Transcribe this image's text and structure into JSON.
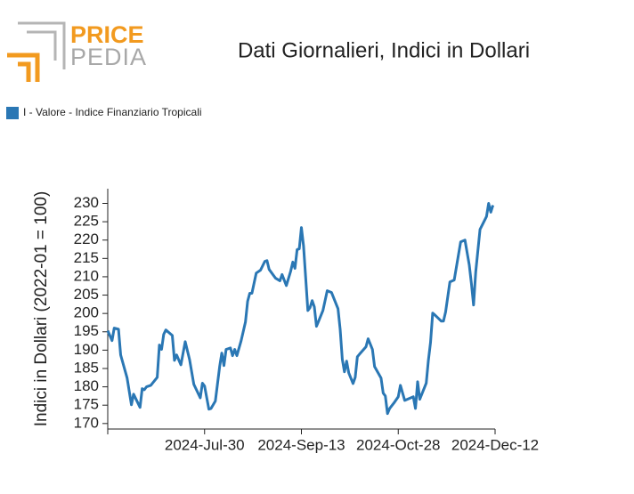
{
  "logo": {
    "line1": "PRICE",
    "line2": "PEDIA"
  },
  "chart_data": {
    "type": "line",
    "title": "Dati Giornalieri, Indici in Dollari",
    "y_label": "Indici in Dollari (2022-01 = 100)",
    "xlim": [
      "2024-06-15",
      "2024-12-12"
    ],
    "xticks": [
      {
        "value": "2024-07-30",
        "label": "2024-Jul-30"
      },
      {
        "value": "2024-09-13",
        "label": "2024-Sep-13"
      },
      {
        "value": "2024-10-28",
        "label": "2024-Oct-28"
      },
      {
        "value": "2024-12-12",
        "label": "2024-Dec-12"
      }
    ],
    "ylim": [
      168.5,
      234
    ],
    "yticks": [
      170,
      175,
      180,
      185,
      190,
      195,
      200,
      205,
      210,
      215,
      220,
      225,
      230
    ],
    "legend": "top-left",
    "series": [
      {
        "name": "I - Valore - Indice Finanziario Tropicali",
        "color": "#2a77b4",
        "x": [
          "2024-06-15",
          "2024-06-17",
          "2024-06-18",
          "2024-06-20",
          "2024-06-21",
          "2024-06-24",
          "2024-06-26",
          "2024-06-27",
          "2024-06-30",
          "2024-07-01",
          "2024-07-02",
          "2024-07-03",
          "2024-07-05",
          "2024-07-08",
          "2024-07-09",
          "2024-07-10",
          "2024-07-11",
          "2024-07-12",
          "2024-07-15",
          "2024-07-16",
          "2024-07-17",
          "2024-07-19",
          "2024-07-21",
          "2024-07-23",
          "2024-07-25",
          "2024-07-28",
          "2024-07-29",
          "2024-07-30",
          "2024-08-01",
          "2024-08-02",
          "2024-08-04",
          "2024-08-06",
          "2024-08-07",
          "2024-08-08",
          "2024-08-09",
          "2024-08-11",
          "2024-08-12",
          "2024-08-13",
          "2024-08-14",
          "2024-08-16",
          "2024-08-18",
          "2024-08-19",
          "2024-08-20",
          "2024-08-21",
          "2024-08-23",
          "2024-08-25",
          "2024-08-27",
          "2024-08-28",
          "2024-08-29",
          "2024-09-01",
          "2024-09-03",
          "2024-09-04",
          "2024-09-06",
          "2024-09-08",
          "2024-09-09",
          "2024-09-10",
          "2024-09-11",
          "2024-09-12",
          "2024-09-13",
          "2024-09-14",
          "2024-09-16",
          "2024-09-17",
          "2024-09-18",
          "2024-09-19",
          "2024-09-20",
          "2024-09-21",
          "2024-09-23",
          "2024-09-25",
          "2024-09-27",
          "2024-09-30",
          "2024-10-01",
          "2024-10-02",
          "2024-10-03",
          "2024-10-04",
          "2024-10-05",
          "2024-10-07",
          "2024-10-08",
          "2024-10-09",
          "2024-10-10",
          "2024-10-13",
          "2024-10-14",
          "2024-10-16",
          "2024-10-17",
          "2024-10-20",
          "2024-10-21",
          "2024-10-22",
          "2024-10-23",
          "2024-10-24",
          "2024-10-26",
          "2024-10-28",
          "2024-10-29",
          "2024-10-31",
          "2024-11-04",
          "2024-11-05",
          "2024-11-06",
          "2024-11-07",
          "2024-11-10",
          "2024-11-11",
          "2024-11-12",
          "2024-11-13",
          "2024-11-14",
          "2024-11-17",
          "2024-11-18",
          "2024-11-19",
          "2024-11-21",
          "2024-11-23",
          "2024-11-26",
          "2024-11-28",
          "2024-11-30",
          "2024-12-01",
          "2024-12-02",
          "2024-12-03",
          "2024-12-05",
          "2024-12-08",
          "2024-12-09",
          "2024-12-10",
          "2024-12-11"
        ],
        "values": [
          195.3,
          192.6,
          196,
          195.7,
          188.7,
          182.4,
          175.1,
          178,
          174.4,
          179.5,
          179.2,
          180,
          180.4,
          182.6,
          191.4,
          190.2,
          194.3,
          195.5,
          194,
          187.2,
          188.7,
          186,
          192.3,
          187.5,
          180.7,
          177,
          181,
          180.2,
          173.9,
          174.1,
          176.1,
          185.5,
          189.2,
          185.8,
          190.2,
          190.6,
          188.5,
          190.2,
          188.5,
          192.6,
          197.7,
          203.3,
          205.5,
          205.5,
          211,
          211.8,
          214.2,
          214.4,
          212,
          209.6,
          208.9,
          210.6,
          207.6,
          211.5,
          214,
          212.3,
          217.4,
          217.6,
          223.4,
          218.3,
          200.8,
          201.6,
          203.5,
          201.8,
          196.5,
          197.9,
          200.8,
          206.2,
          205.7,
          201.3,
          195.7,
          187.5,
          184.1,
          187,
          183.8,
          180.9,
          182.6,
          188.2,
          188.9,
          190.9,
          193.1,
          190.2,
          185.5,
          182.4,
          178.3,
          177.5,
          172.7,
          174.1,
          175.6,
          177.3,
          180.4,
          176.3,
          177.3,
          174.1,
          181.4,
          176.6,
          181,
          187.2,
          192.1,
          200.1,
          199.6,
          197.9,
          197.9,
          200.4,
          208.6,
          209.1,
          219.5,
          220,
          213.2,
          208.1,
          202.3,
          211.3,
          222.9,
          226.4,
          230,
          227.6,
          229.5
        ]
      }
    ]
  }
}
